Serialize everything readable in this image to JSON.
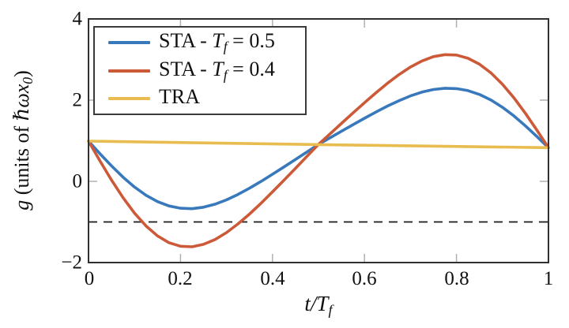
{
  "chart_data": {
    "type": "line",
    "title": "",
    "xlabel": "t/T_f",
    "ylabel": "g (units of ℏωx_0)",
    "xlabel_parts": {
      "main": "t/T",
      "sub": "f"
    },
    "ylabel_parts": {
      "sym": "g",
      "mid": " (units of ",
      "units": "ℏωx",
      "sub": "0",
      "close": ")"
    },
    "xlim": [
      0,
      1
    ],
    "ylim": [
      -2,
      4
    ],
    "grid": false,
    "legend_position": "top-left",
    "xticks": [
      0,
      0.2,
      0.4,
      0.6,
      0.8,
      1
    ],
    "xticklabels": [
      "0",
      "0.2",
      "0.4",
      "0.6",
      "0.8",
      "1"
    ],
    "yticks": [
      -2,
      0,
      2,
      4
    ],
    "yticklabels": [
      "−2",
      "0",
      "2",
      "4"
    ],
    "colors": {
      "frame": "#303030",
      "tick": "#b0b0b0",
      "text": "#111111"
    },
    "reference_line": {
      "style": "dashed",
      "y": -1,
      "color": "#1a1a1a"
    },
    "series": [
      {
        "id": "sta-tf-0.5",
        "name": "STA - Tf = 0.5",
        "color": "#3879BC",
        "x": [
          0,
          0.025,
          0.05,
          0.075,
          0.1,
          0.125,
          0.15,
          0.175,
          0.2,
          0.225,
          0.25,
          0.275,
          0.3,
          0.325,
          0.35,
          0.375,
          0.4,
          0.425,
          0.45,
          0.475,
          0.5,
          0.525,
          0.55,
          0.575,
          0.6,
          0.625,
          0.65,
          0.675,
          0.7,
          0.725,
          0.75,
          0.775,
          0.8,
          0.825,
          0.85,
          0.875,
          0.9,
          0.925,
          0.95,
          0.975,
          1
        ],
        "y": [
          0.99,
          0.679,
          0.38,
          0.103,
          -0.14,
          -0.343,
          -0.499,
          -0.606,
          -0.663,
          -0.673,
          -0.637,
          -0.563,
          -0.456,
          -0.322,
          -0.169,
          -0.002,
          0.174,
          0.356,
          0.54,
          0.725,
          0.91,
          1.072,
          1.234,
          1.395,
          1.554,
          1.707,
          1.854,
          1.987,
          2.104,
          2.198,
          2.262,
          2.293,
          2.284,
          2.234,
          2.139,
          2.002,
          1.823,
          1.609,
          1.366,
          1.103,
          0.83
        ]
      },
      {
        "id": "sta-tf-0.4",
        "name": "STA - Tf = 0.4",
        "color": "#CC5A38",
        "x": [
          0,
          0.025,
          0.05,
          0.075,
          0.1,
          0.125,
          0.15,
          0.175,
          0.2,
          0.225,
          0.25,
          0.275,
          0.3,
          0.325,
          0.35,
          0.375,
          0.4,
          0.425,
          0.45,
          0.475,
          0.5,
          0.525,
          0.55,
          0.575,
          0.6,
          0.625,
          0.65,
          0.675,
          0.7,
          0.725,
          0.75,
          0.775,
          0.8,
          0.825,
          0.85,
          0.875,
          0.9,
          0.925,
          0.95,
          0.975,
          1
        ],
        "y": [
          0.99,
          0.502,
          0.032,
          -0.401,
          -0.782,
          -1.1,
          -1.344,
          -1.511,
          -1.598,
          -1.611,
          -1.552,
          -1.433,
          -1.262,
          -1.049,
          -0.805,
          -0.539,
          -0.259,
          0.029,
          0.321,
          0.615,
          0.91,
          1.169,
          1.427,
          1.683,
          1.936,
          2.182,
          2.415,
          2.629,
          2.816,
          2.966,
          3.071,
          3.121,
          3.11,
          3.032,
          2.885,
          2.67,
          2.391,
          2.055,
          1.673,
          1.26,
          0.83
        ]
      },
      {
        "id": "tra",
        "name": "TRA",
        "color": "#E8BC4E",
        "x": [
          0,
          0.5,
          1
        ],
        "y": [
          0.99,
          0.905,
          0.83
        ]
      }
    ]
  },
  "legend": {
    "items": [
      {
        "pre": "STA - ",
        "sym": "T",
        "sub": "f",
        "post": " = 0.5"
      },
      {
        "pre": "STA - ",
        "sym": "T",
        "sub": "f",
        "post": " = 0.4"
      },
      {
        "pre": "TRA",
        "sym": "",
        "sub": "",
        "post": ""
      }
    ]
  }
}
